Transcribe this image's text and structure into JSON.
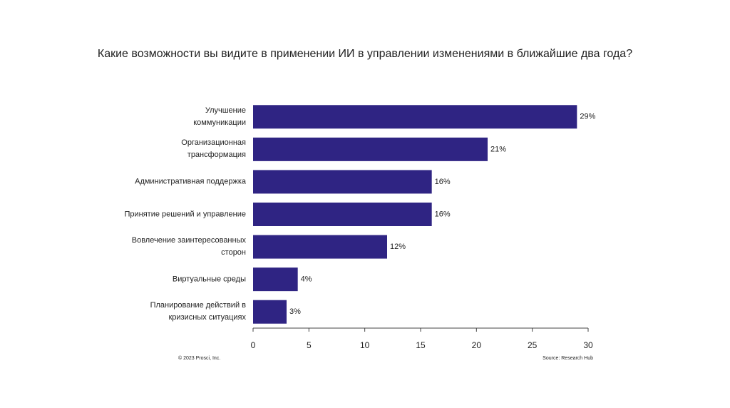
{
  "chart_data": {
    "type": "bar",
    "orientation": "horizontal",
    "title": "Какие возможности вы видите в применении ИИ в управлении изменениями в ближайшие два года?",
    "categories": [
      "Улучшение\nкоммуникации",
      "Организационная\nтрансформация",
      "Административная поддержка",
      "Принятие решений и управление",
      "Вовлечение заинтересованных\nсторон",
      "Виртуальные среды",
      "Планирование  действий в\nкризисных ситуациях"
    ],
    "values": [
      29,
      21,
      16,
      16,
      12,
      4,
      3
    ],
    "value_labels": [
      "29%",
      "21%",
      "16%",
      "16%",
      "12%",
      "4%",
      "3%"
    ],
    "color": "#2f2483",
    "xlim": [
      0,
      30
    ],
    "xticks": [
      0,
      5,
      10,
      15,
      20,
      25,
      30
    ],
    "footer_left": "© 2023 Prosci, Inc.",
    "footer_right": "Source: Research Hub"
  }
}
